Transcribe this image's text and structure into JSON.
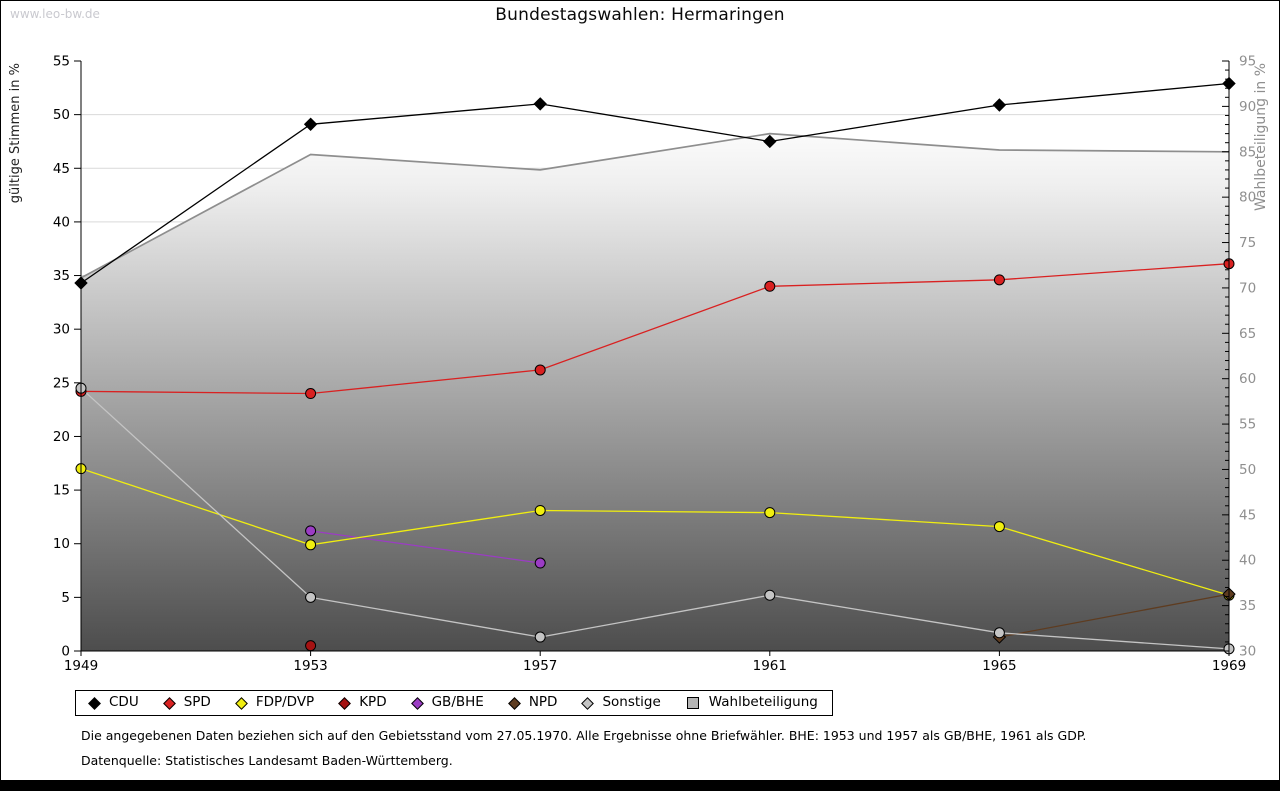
{
  "watermark": "www.leo-bw.de",
  "title": "Bundestagswahlen: Hermaringen",
  "chart_data": {
    "type": "line",
    "x": [
      1949,
      1953,
      1957,
      1961,
      1965,
      1969
    ],
    "left_axis": {
      "label": "gültige Stimmen in %",
      "min": 0,
      "max": 55,
      "tick_step": 5
    },
    "right_axis": {
      "label": "Wahlbeteiligung in %",
      "min": 30,
      "max": 95,
      "tick_step": 5
    },
    "grid": "horizontal",
    "legend_position": "bottom",
    "series": [
      {
        "name": "CDU",
        "axis": "left",
        "color": "#000000",
        "marker": "diamond",
        "z": 6,
        "points": [
          [
            1949,
            34.3
          ],
          [
            1953,
            49.1
          ],
          [
            1957,
            51.0
          ],
          [
            1961,
            47.5
          ],
          [
            1965,
            50.9
          ],
          [
            1969,
            52.9
          ]
        ]
      },
      {
        "name": "SPD",
        "axis": "left",
        "color": "#d92121",
        "marker": "circle",
        "z": 5,
        "points": [
          [
            1949,
            24.2
          ],
          [
            1953,
            24.0
          ],
          [
            1957,
            26.2
          ],
          [
            1961,
            34.0
          ],
          [
            1965,
            34.6
          ],
          [
            1969,
            36.1
          ]
        ]
      },
      {
        "name": "FDP/DVP",
        "axis": "left",
        "color": "#f0ee10",
        "marker": "circle",
        "z": 4,
        "points": [
          [
            1949,
            17.0
          ],
          [
            1953,
            9.9
          ],
          [
            1957,
            13.1
          ],
          [
            1961,
            12.9
          ],
          [
            1965,
            11.6
          ],
          [
            1969,
            5.2
          ]
        ]
      },
      {
        "name": "KPD",
        "axis": "left",
        "color": "#a51212",
        "marker": "circle",
        "z": 2,
        "points": [
          [
            1953,
            0.5
          ]
        ]
      },
      {
        "name": "GB/BHE",
        "axis": "left",
        "color": "#9b3cc4",
        "marker": "circle",
        "z": 3,
        "points": [
          [
            1953,
            11.2
          ],
          [
            1957,
            8.2
          ]
        ]
      },
      {
        "name": "NPD",
        "axis": "left",
        "color": "#5e3c20",
        "marker": "diamond",
        "z": 7,
        "points": [
          [
            1965,
            1.3
          ],
          [
            1969,
            5.3
          ]
        ]
      },
      {
        "name": "Sonstige",
        "axis": "left",
        "color": "#c4c4c4",
        "marker": "circle",
        "z": 8,
        "points": [
          [
            1949,
            24.5
          ],
          [
            1953,
            5.0
          ],
          [
            1957,
            1.3
          ],
          [
            1961,
            5.2
          ],
          [
            1965,
            1.7
          ],
          [
            1969,
            0.2
          ]
        ]
      },
      {
        "name": "Wahlbeteiligung",
        "axis": "right",
        "color": "#8e8e8e",
        "marker": "none",
        "area": true,
        "z": 1,
        "points": [
          [
            1949,
            71.1
          ],
          [
            1953,
            84.7
          ],
          [
            1957,
            83.0
          ],
          [
            1961,
            87.0
          ],
          [
            1965,
            85.2
          ],
          [
            1969,
            85.0
          ]
        ]
      }
    ]
  },
  "legend": [
    {
      "label": "CDU",
      "color": "#000000",
      "marker": "diamond"
    },
    {
      "label": "SPD",
      "color": "#d92121",
      "marker": "diamond"
    },
    {
      "label": "FDP/DVP",
      "color": "#f0ee10",
      "marker": "diamond"
    },
    {
      "label": "KPD",
      "color": "#a51212",
      "marker": "diamond"
    },
    {
      "label": "GB/BHE",
      "color": "#9b3cc4",
      "marker": "diamond"
    },
    {
      "label": "NPD",
      "color": "#5e3c20",
      "marker": "diamond"
    },
    {
      "label": "Sonstige",
      "color": "#c4c4c4",
      "marker": "diamond"
    },
    {
      "label": "Wahlbeteiligung",
      "color": "#b5b5b5",
      "marker": "square"
    }
  ],
  "notes": {
    "line1": "Die angegebenen Daten beziehen sich auf den Gebietsstand vom 27.05.1970. Alle Ergebnisse ohne Briefwähler. BHE: 1953 und 1957 als GB/BHE, 1961 als GDP.",
    "line2": "Datenquelle: Statistisches Landesamt Baden-Württemberg."
  },
  "colors": {
    "grid": "#d9d9d9",
    "axis": "#000000",
    "right_axis_text": "#8f8f8f",
    "left_axis_title": "#222222",
    "area_top": "#fbfbfb",
    "area_bottom": "#4d4d4d",
    "frame": "#000000",
    "watermark": "#c9c9cf"
  }
}
